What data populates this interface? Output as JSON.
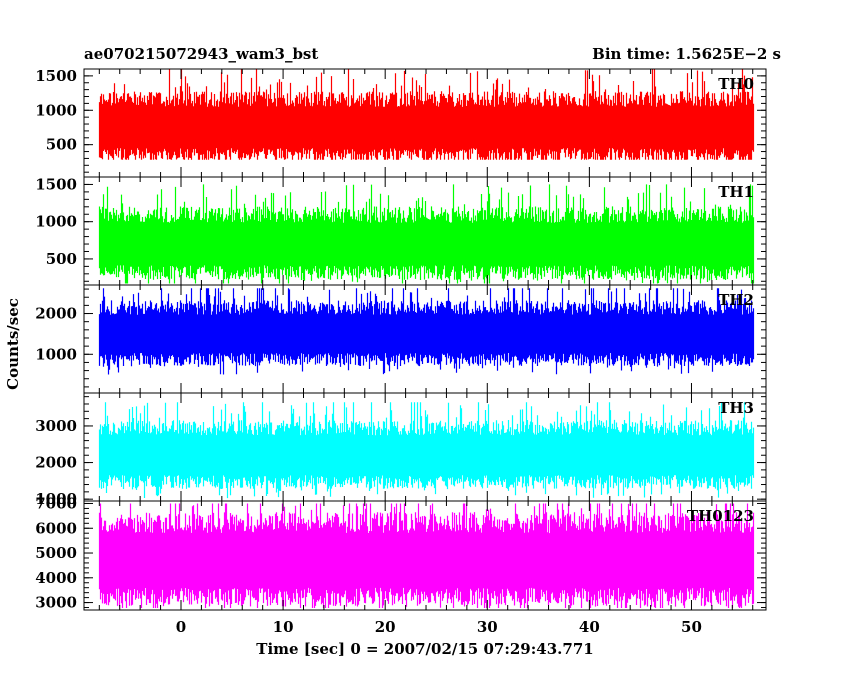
{
  "chart_data": {
    "type": "line",
    "title_left": "ae070215072943_wam3_bst",
    "title_right": "Bin time: 1.5625E−2 s",
    "xlabel": "Time [sec] 0 = 2007/02/15 07:29:43.771",
    "ylabel": "Counts/sec",
    "xlim": [
      -9.5,
      57.3
    ],
    "x_ticks": [
      0,
      10,
      20,
      30,
      40,
      50
    ],
    "x_tick_labels": [
      "0",
      "10",
      "20",
      "30",
      "40",
      "50"
    ],
    "data_x_range": [
      -8,
      56
    ],
    "bin_time": 0.015625,
    "series": [
      {
        "name": "TH0",
        "color": "#ff0000",
        "ylim": [
          30,
          1600
        ],
        "ticks": [
          500,
          1000,
          1500
        ],
        "tick_labels": [
          "500",
          "1000",
          "1500"
        ],
        "mean": 750,
        "low": 280,
        "high": 1620,
        "spread": 230
      },
      {
        "name": "TH1",
        "color": "#00ff00",
        "ylim": [
          150,
          1600
        ],
        "ticks": [
          500,
          1000,
          1500
        ],
        "tick_labels": [
          "500",
          "1000",
          "1500"
        ],
        "mean": 700,
        "low": 170,
        "high": 1500,
        "spread": 220
      },
      {
        "name": "TH2",
        "color": "#0000ff",
        "ylim": [
          50,
          2700
        ],
        "ticks": [
          1000,
          2000
        ],
        "tick_labels": [
          "1000",
          "2000"
        ],
        "mean": 1500,
        "low": 300,
        "high": 2620,
        "spread": 360
      },
      {
        "name": "TH3",
        "color": "#00ffff",
        "ylim": [
          950,
          3900
        ],
        "ticks": [
          1000,
          2000,
          3000
        ],
        "tick_labels": [
          "1000",
          "2000",
          "3000"
        ],
        "mean": 2200,
        "low": 1010,
        "high": 3650,
        "spread": 420
      },
      {
        "name": "TH0123",
        "color": "#ff00ff",
        "ylim": [
          2700,
          7100
        ],
        "ticks": [
          3000,
          4000,
          5000,
          6000,
          7000
        ],
        "tick_labels": [
          "3000",
          "4000",
          "5000",
          "6000",
          "7000"
        ],
        "mean": 4700,
        "low": 2780,
        "high": 7000,
        "spread": 850
      }
    ]
  }
}
